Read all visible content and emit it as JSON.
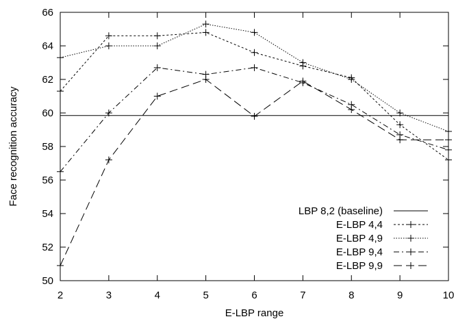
{
  "chart_data": {
    "type": "line",
    "xlabel": "E-LBP range",
    "ylabel": "Face recognition accuracy",
    "xlim": [
      2,
      10
    ],
    "ylim": [
      50,
      66
    ],
    "xticks": [
      "2",
      "3",
      "4",
      "5",
      "6",
      "7",
      "8",
      "9",
      "10"
    ],
    "yticks": [
      "50",
      "52",
      "54",
      "56",
      "58",
      "60",
      "62",
      "64",
      "66"
    ],
    "grid": false,
    "legend_position": "bottom-right",
    "series": [
      {
        "name": "LBP 8,2 (baseline)",
        "style": "solid",
        "markers": false,
        "x": [
          2,
          10
        ],
        "y": [
          59.85,
          59.85
        ]
      },
      {
        "name": "E-LBP 4,4",
        "style": "dotted",
        "markers": true,
        "x": [
          2,
          3,
          4,
          5,
          6,
          7,
          8,
          9,
          10
        ],
        "y": [
          61.3,
          64.6,
          64.6,
          64.8,
          63.6,
          62.8,
          62.1,
          59.3,
          57.2
        ]
      },
      {
        "name": "E-LBP 4,9",
        "style": "fine-dotted",
        "markers": true,
        "x": [
          2,
          3,
          4,
          5,
          6,
          7,
          8,
          9,
          10
        ],
        "y": [
          63.3,
          64.0,
          64.0,
          65.3,
          64.8,
          63.0,
          62.0,
          60.0,
          58.9
        ]
      },
      {
        "name": "E-LBP 9,4",
        "style": "dash-dot",
        "markers": true,
        "x": [
          2,
          3,
          4,
          5,
          6,
          7,
          8,
          9,
          10
        ],
        "y": [
          56.5,
          60.0,
          62.7,
          62.3,
          62.7,
          61.8,
          60.5,
          58.7,
          57.8
        ]
      },
      {
        "name": "E-LBP 9,9",
        "style": "long-dash",
        "markers": true,
        "x": [
          2,
          3,
          4,
          5,
          6,
          7,
          8,
          9,
          10
        ],
        "y": [
          50.9,
          57.2,
          61.0,
          62.0,
          59.8,
          61.9,
          60.2,
          58.4,
          58.4
        ]
      }
    ]
  }
}
